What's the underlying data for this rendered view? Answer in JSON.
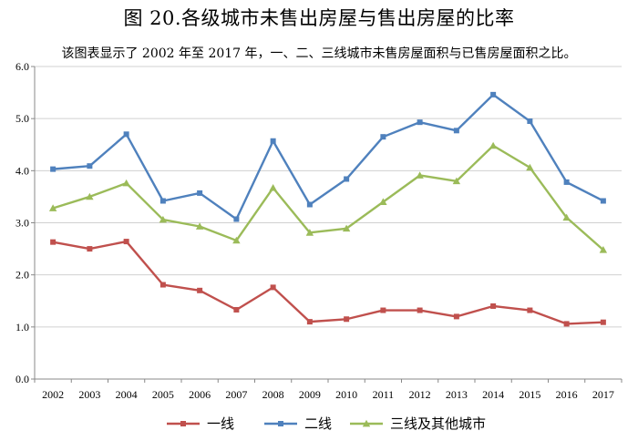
{
  "title": "图 20.各级城市未售出房屋与售出房屋的比率",
  "subtitle": "该图表显示了 2002 年至 2017 年，一、二、三线城市未售房屋面积与已售房屋面积之比。",
  "colors": {
    "series": [
      "#c0504d",
      "#4f81bd",
      "#9bbb59"
    ],
    "axis": "#888888"
  },
  "chart_data": {
    "type": "line",
    "x": [
      "2002",
      "2003",
      "2004",
      "2005",
      "2006",
      "2007",
      "2008",
      "2009",
      "2010",
      "2011",
      "2012",
      "2013",
      "2014",
      "2015",
      "2016",
      "2017"
    ],
    "ylim": [
      0,
      6
    ],
    "yticks": [
      "0.0",
      "1.0",
      "2.0",
      "3.0",
      "4.0",
      "5.0",
      "6.0"
    ],
    "grid": "horizontal",
    "legend": "bottom",
    "series": [
      {
        "name": "一线",
        "marker": "square",
        "values": [
          2.63,
          2.5,
          2.64,
          1.81,
          1.7,
          1.33,
          1.76,
          1.1,
          1.15,
          1.32,
          1.32,
          1.2,
          1.4,
          1.32,
          1.06,
          1.09
        ]
      },
      {
        "name": "二线",
        "marker": "square",
        "values": [
          4.03,
          4.09,
          4.7,
          3.42,
          3.57,
          3.07,
          4.57,
          3.35,
          3.84,
          4.65,
          4.93,
          4.77,
          5.46,
          4.95,
          3.78,
          3.42
        ]
      },
      {
        "name": "三线及其他城市",
        "marker": "triangle",
        "values": [
          3.28,
          3.5,
          3.76,
          3.06,
          2.93,
          2.66,
          3.67,
          2.81,
          2.89,
          3.4,
          3.91,
          3.8,
          4.48,
          4.06,
          3.1,
          2.48
        ]
      }
    ]
  }
}
